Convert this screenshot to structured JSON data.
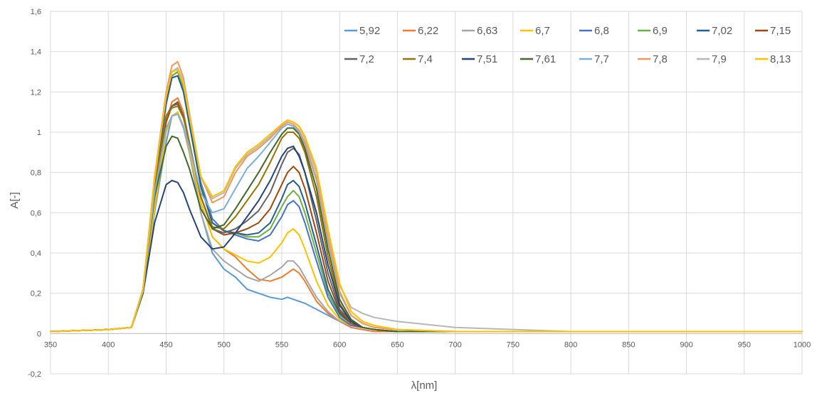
{
  "chart_data": {
    "type": "line",
    "title": "",
    "xlabel": "λ[nm]",
    "ylabel": "A[-]",
    "xlim": [
      350,
      1000
    ],
    "ylim": [
      -0.2,
      1.6
    ],
    "x_ticks": [
      "350",
      "400",
      "450",
      "500",
      "550",
      "600",
      "650",
      "700",
      "750",
      "800",
      "850",
      "900",
      "950",
      "1000"
    ],
    "y_ticks": [
      "-0,2",
      "0",
      "0,2",
      "0,4",
      "0,6",
      "0,8",
      "1",
      "1,2",
      "1,4",
      "1,6"
    ],
    "grid": "vertical and horizontal major gridlines",
    "legend_position": "top-right",
    "x": [
      350,
      400,
      420,
      430,
      440,
      450,
      455,
      460,
      465,
      470,
      480,
      490,
      500,
      510,
      520,
      530,
      540,
      550,
      555,
      560,
      565,
      570,
      580,
      590,
      600,
      610,
      620,
      630,
      650,
      700,
      800,
      900,
      1000
    ],
    "series": [
      {
        "name": "5,92",
        "color": "#5b9bd5",
        "values": [
          0.01,
          0.02,
          0.03,
          0.2,
          0.6,
          0.95,
          1.08,
          1.1,
          1.02,
          0.9,
          0.6,
          0.4,
          0.32,
          0.28,
          0.22,
          0.2,
          0.18,
          0.17,
          0.18,
          0.17,
          0.16,
          0.15,
          0.12,
          0.09,
          0.06,
          0.03,
          0.02,
          0.01,
          0.01,
          0.01,
          0.01,
          0.01,
          0.01
        ]
      },
      {
        "name": "6,22",
        "color": "#ed7d31",
        "values": [
          0.01,
          0.02,
          0.03,
          0.2,
          0.65,
          1.05,
          1.15,
          1.17,
          1.1,
          0.95,
          0.65,
          0.48,
          0.42,
          0.38,
          0.32,
          0.27,
          0.26,
          0.28,
          0.3,
          0.32,
          0.3,
          0.26,
          0.16,
          0.1,
          0.06,
          0.03,
          0.02,
          0.01,
          0.01,
          0.01,
          0.01,
          0.01,
          0.01
        ]
      },
      {
        "name": "6,63",
        "color": "#a5a5a5",
        "values": [
          0.01,
          0.02,
          0.03,
          0.2,
          0.62,
          1.0,
          1.08,
          1.09,
          1.02,
          0.9,
          0.6,
          0.42,
          0.36,
          0.32,
          0.28,
          0.26,
          0.29,
          0.33,
          0.36,
          0.36,
          0.33,
          0.28,
          0.18,
          0.11,
          0.06,
          0.04,
          0.03,
          0.02,
          0.01,
          0.01,
          0.01,
          0.01,
          0.01
        ]
      },
      {
        "name": "6,7",
        "color": "#ffc000",
        "values": [
          0.01,
          0.02,
          0.03,
          0.2,
          0.62,
          1.0,
          1.08,
          1.1,
          1.03,
          0.92,
          0.65,
          0.48,
          0.42,
          0.39,
          0.36,
          0.35,
          0.38,
          0.45,
          0.5,
          0.52,
          0.49,
          0.42,
          0.26,
          0.14,
          0.07,
          0.04,
          0.03,
          0.02,
          0.01,
          0.01,
          0.01,
          0.01,
          0.01
        ]
      },
      {
        "name": "6,8",
        "color": "#4472c4",
        "values": [
          0.01,
          0.02,
          0.03,
          0.22,
          0.75,
          1.15,
          1.28,
          1.3,
          1.22,
          1.05,
          0.75,
          0.57,
          0.51,
          0.49,
          0.47,
          0.46,
          0.49,
          0.58,
          0.64,
          0.66,
          0.63,
          0.55,
          0.36,
          0.18,
          0.08,
          0.04,
          0.03,
          0.02,
          0.01,
          0.01,
          0.01,
          0.01,
          0.01
        ]
      },
      {
        "name": "6,9",
        "color": "#70ad47",
        "values": [
          0.01,
          0.02,
          0.03,
          0.22,
          0.75,
          1.15,
          1.28,
          1.3,
          1.22,
          1.05,
          0.74,
          0.55,
          0.51,
          0.5,
          0.48,
          0.48,
          0.52,
          0.63,
          0.68,
          0.71,
          0.68,
          0.6,
          0.4,
          0.2,
          0.09,
          0.05,
          0.03,
          0.02,
          0.01,
          0.01,
          0.01,
          0.01,
          0.01
        ]
      },
      {
        "name": "7,02",
        "color": "#255e91",
        "values": [
          0.01,
          0.02,
          0.03,
          0.22,
          0.74,
          1.14,
          1.27,
          1.28,
          1.2,
          1.04,
          0.73,
          0.55,
          0.51,
          0.5,
          0.49,
          0.5,
          0.55,
          0.67,
          0.74,
          0.76,
          0.73,
          0.65,
          0.44,
          0.22,
          0.1,
          0.05,
          0.03,
          0.02,
          0.01,
          0.01,
          0.01,
          0.01,
          0.01
        ]
      },
      {
        "name": "7,15",
        "color": "#9e480e",
        "values": [
          0.01,
          0.02,
          0.03,
          0.22,
          0.72,
          1.05,
          1.13,
          1.15,
          1.08,
          0.95,
          0.68,
          0.52,
          0.49,
          0.5,
          0.52,
          0.55,
          0.62,
          0.74,
          0.8,
          0.83,
          0.8,
          0.72,
          0.5,
          0.26,
          0.11,
          0.05,
          0.03,
          0.02,
          0.01,
          0.01,
          0.01,
          0.01,
          0.01
        ]
      },
      {
        "name": "7,2",
        "color": "#636363",
        "values": [
          0.01,
          0.02,
          0.03,
          0.22,
          0.73,
          1.08,
          1.13,
          1.14,
          1.08,
          0.95,
          0.68,
          0.52,
          0.5,
          0.52,
          0.56,
          0.61,
          0.7,
          0.84,
          0.9,
          0.92,
          0.89,
          0.8,
          0.56,
          0.3,
          0.12,
          0.06,
          0.03,
          0.02,
          0.01,
          0.01,
          0.01,
          0.01,
          0.01
        ]
      },
      {
        "name": "7,4",
        "color": "#997300",
        "values": [
          0.01,
          0.02,
          0.03,
          0.22,
          0.73,
          1.08,
          1.12,
          1.13,
          1.07,
          0.95,
          0.68,
          0.53,
          0.52,
          0.58,
          0.66,
          0.74,
          0.85,
          0.97,
          1.0,
          1.0,
          0.97,
          0.9,
          0.68,
          0.38,
          0.15,
          0.06,
          0.03,
          0.02,
          0.01,
          0.01,
          0.01,
          0.01,
          0.01
        ]
      },
      {
        "name": "7,51",
        "color": "#264478",
        "values": [
          0.01,
          0.02,
          0.03,
          0.2,
          0.55,
          0.74,
          0.76,
          0.75,
          0.7,
          0.62,
          0.48,
          0.42,
          0.43,
          0.5,
          0.58,
          0.66,
          0.76,
          0.88,
          0.92,
          0.93,
          0.88,
          0.8,
          0.6,
          0.34,
          0.14,
          0.06,
          0.03,
          0.02,
          0.01,
          0.01,
          0.01,
          0.01,
          0.01
        ]
      },
      {
        "name": "7,61",
        "color": "#43682b",
        "values": [
          0.01,
          0.02,
          0.03,
          0.21,
          0.68,
          0.93,
          0.98,
          0.97,
          0.9,
          0.82,
          0.62,
          0.52,
          0.54,
          0.62,
          0.71,
          0.8,
          0.9,
          0.99,
          1.02,
          1.02,
          0.99,
          0.92,
          0.72,
          0.42,
          0.17,
          0.07,
          0.03,
          0.02,
          0.01,
          0.01,
          0.01,
          0.01,
          0.01
        ]
      },
      {
        "name": "7,7",
        "color": "#7cafdd",
        "values": [
          0.01,
          0.02,
          0.03,
          0.21,
          0.7,
          1.02,
          1.08,
          1.09,
          1.03,
          0.93,
          0.7,
          0.6,
          0.62,
          0.72,
          0.82,
          0.88,
          0.95,
          1.02,
          1.04,
          1.03,
          1.0,
          0.94,
          0.76,
          0.46,
          0.2,
          0.09,
          0.05,
          0.03,
          0.02,
          0.01,
          0.01,
          0.01,
          0.01
        ]
      },
      {
        "name": "7,8",
        "color": "#f1975a",
        "values": [
          0.01,
          0.02,
          0.03,
          0.22,
          0.78,
          1.2,
          1.33,
          1.35,
          1.27,
          1.1,
          0.78,
          0.65,
          0.68,
          0.8,
          0.88,
          0.92,
          0.97,
          1.03,
          1.05,
          1.04,
          1.01,
          0.95,
          0.77,
          0.47,
          0.21,
          0.09,
          0.05,
          0.03,
          0.02,
          0.01,
          0.01,
          0.01,
          0.01
        ]
      },
      {
        "name": "7,9",
        "color": "#b7b7b7",
        "values": [
          0.01,
          0.02,
          0.03,
          0.22,
          0.77,
          1.18,
          1.3,
          1.32,
          1.25,
          1.09,
          0.78,
          0.67,
          0.7,
          0.82,
          0.89,
          0.93,
          0.98,
          1.04,
          1.06,
          1.05,
          1.03,
          0.97,
          0.8,
          0.5,
          0.24,
          0.13,
          0.1,
          0.08,
          0.06,
          0.03,
          0.01,
          0.01,
          0.01
        ]
      },
      {
        "name": "8,13",
        "color": "#ffc000",
        "values": [
          0.01,
          0.02,
          0.03,
          0.22,
          0.77,
          1.18,
          1.3,
          1.31,
          1.24,
          1.08,
          0.78,
          0.68,
          0.71,
          0.83,
          0.9,
          0.94,
          0.99,
          1.04,
          1.06,
          1.05,
          1.03,
          0.98,
          0.82,
          0.52,
          0.25,
          0.11,
          0.06,
          0.04,
          0.02,
          0.01,
          0.01,
          0.01,
          0.01
        ]
      }
    ]
  }
}
